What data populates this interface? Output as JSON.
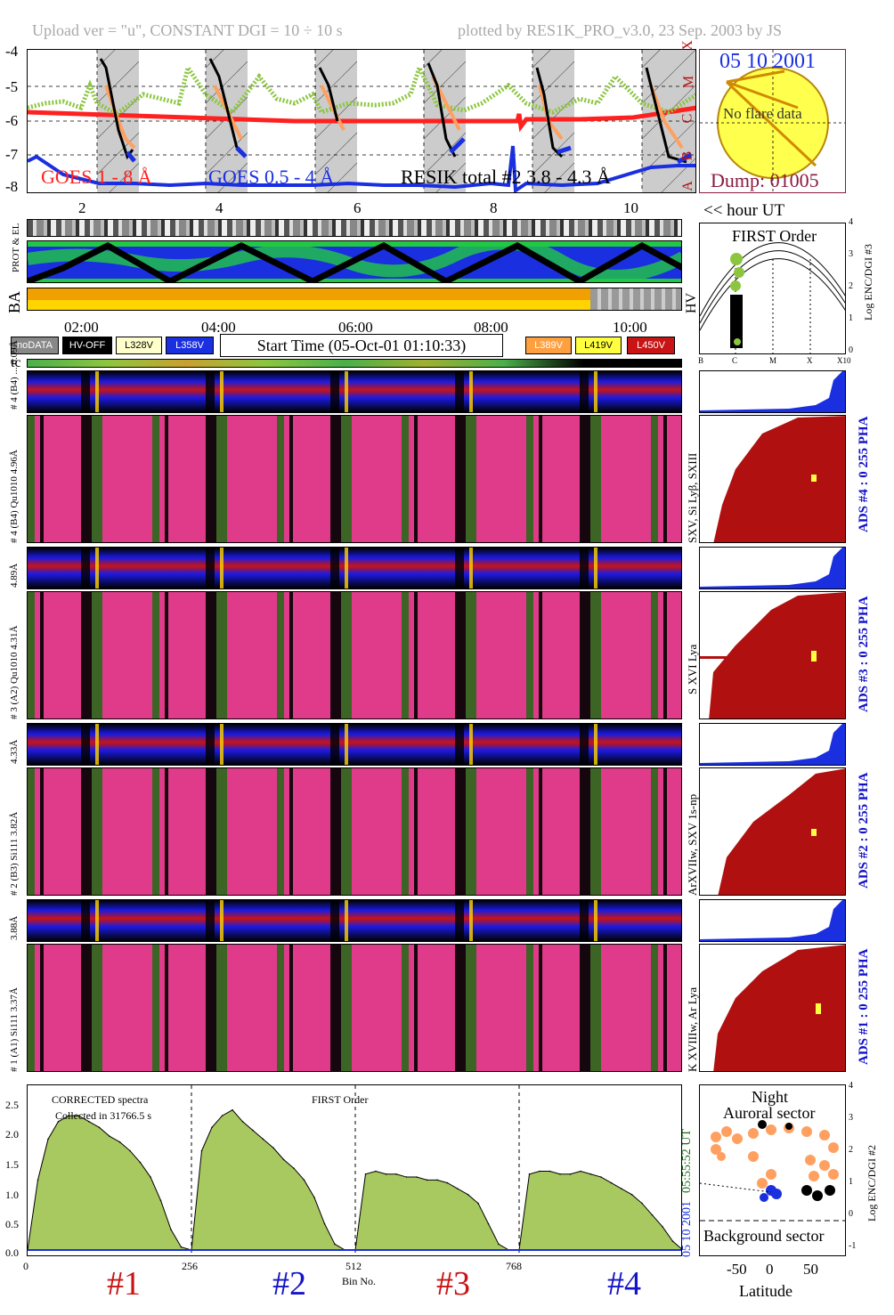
{
  "header": {
    "left": "Upload ver = \"u\", CONSTANT  DGI =  10 ÷  10 s",
    "right": "plotted by RES1K_PRO_v3.0, 23 Sep. 2003 by JS"
  },
  "goes_panel": {
    "y_ticks": [
      "-4",
      "-5",
      "-6",
      "-7",
      "-8"
    ],
    "class_letters": [
      "X",
      "M",
      "C",
      "B",
      "A"
    ],
    "goes1": "GOES 1 - 8 Å",
    "goes2": "GOES 0.5 - 4 Å",
    "resik_total": "RESIK total #2  3.8 - 4.3 Å",
    "hour_ticks": [
      "2",
      "4",
      "6",
      "8",
      "10"
    ],
    "hour_axis_label": "<< hour UT",
    "colors": {
      "goes1": "#ff2020",
      "goes2": "#1a2fe0",
      "resik": "#000000",
      "green": "#8cc63f",
      "orange": "#ffa060"
    }
  },
  "sun_panel": {
    "date": "05 10 2001",
    "no_flare": "No flare data",
    "dump": "Dump: 01005"
  },
  "status_rows": {
    "prot_el": "PROT & EL",
    "ba": "BA",
    "hv": "HV"
  },
  "time_axis": {
    "ticks": [
      "02:00",
      "04:00",
      "06:00",
      "08:00",
      "10:00"
    ]
  },
  "legend": {
    "nodata": "noDATA",
    "hvoff": "HV-OFF",
    "l328": "L328V",
    "l358": "L358V",
    "start_time": "Start Time (05-Oct-01 01:10:33)",
    "l389": "L389V",
    "l419": "L419V",
    "l450": "L450V",
    "tc": "tc"
  },
  "first_order": {
    "title": "FIRST Order",
    "y_label": "Log ENC/DGI #3",
    "y_ticks": [
      "4",
      "3",
      "2",
      "1",
      "0"
    ],
    "x_ticks": [
      "B",
      "C",
      "M",
      "X",
      "X10"
    ]
  },
  "channels": [
    {
      "pha_label": "# 4 (B4) ... 6.09Å",
      "label": "# 4 (B4) Qu1010 4.96Å",
      "lines": "SXV, Si Lyβ, SXIII",
      "ads": "ADS #4 :    0 255  PHA"
    },
    {
      "pha_label": "4.89Å",
      "label": "# 3 (A2) Qu1010 4.31Å",
      "lines": "S XVI Lya",
      "ads": "ADS #3 :    0 255  PHA"
    },
    {
      "pha_label": "4.33Å",
      "label": "# 2 (B3) Si111 3.82Å",
      "lines": "ArXVIIw, SXV 1s-np",
      "ads": "ADS #2 :    0 255  PHA"
    },
    {
      "pha_label": "3.88Å",
      "label": "# 1 (A1) Si111 3.37Å",
      "lines": "K XVIIIw, Ar Lya",
      "ads": "ADS #1 :    0 255  PHA"
    }
  ],
  "spectrum": {
    "title": "CORRECTED spectra",
    "collected": "Collected in 31766.5 s",
    "first_order": "FIRST Order",
    "xlabel": "Bin No.",
    "x_ticks": [
      "0",
      "256",
      "512",
      "768"
    ],
    "y_ticks": [
      "2.5",
      "2.0",
      "1.5",
      "1.0",
      "0.5",
      "0.0"
    ],
    "side_label": "05 10 2001",
    "side_time": "05:55:52 UT",
    "channel_labels": [
      "#1",
      "#2",
      "#3",
      "#4"
    ],
    "channel_colors": [
      "#c81414",
      "#1414c8",
      "#c81414",
      "#1414c8"
    ]
  },
  "latitude_panel": {
    "night": "Night",
    "auroral": "Auroral sector",
    "background": "Background sector",
    "xlabel": "Latitude",
    "x_ticks": [
      "-50",
      "0",
      "50"
    ],
    "y_label": "Log ENC/DGI #2",
    "y_ticks": [
      "4",
      "3",
      "2",
      "1",
      "0",
      "-1"
    ]
  },
  "chart_data": {
    "type": "line",
    "title": "",
    "xlabel": "Bin No.",
    "ylabel": "",
    "ylim": [
      0,
      2.7
    ],
    "x": [
      0,
      16,
      32,
      48,
      64,
      80,
      96,
      112,
      128,
      144,
      160,
      176,
      192,
      208,
      224,
      240,
      256,
      272,
      288,
      304,
      320,
      336,
      352,
      368,
      384,
      400,
      416,
      432,
      448,
      464,
      480,
      496,
      512,
      528,
      544,
      560,
      576,
      592,
      608,
      624,
      640,
      656,
      672,
      688,
      704,
      720,
      736,
      752,
      768,
      784,
      800,
      816,
      832,
      848,
      864,
      880,
      896,
      912,
      928,
      944,
      960,
      976,
      992,
      1008,
      1024
    ],
    "series": [
      {
        "values": [
          0.0,
          1.2,
          1.9,
          2.2,
          2.3,
          2.3,
          2.2,
          2.1,
          1.95,
          1.85,
          1.7,
          1.5,
          1.25,
          0.85,
          0.35,
          0.05,
          0.0,
          1.7,
          2.1,
          2.3,
          2.4,
          2.2,
          2.05,
          1.9,
          1.75,
          1.55,
          1.4,
          1.2,
          0.9,
          0.45,
          0.1,
          0.0,
          0.0,
          1.3,
          1.35,
          1.3,
          1.3,
          1.25,
          1.25,
          1.2,
          1.2,
          1.15,
          1.05,
          0.95,
          0.8,
          0.45,
          0.1,
          0.0,
          0.0,
          1.3,
          1.35,
          1.35,
          1.3,
          1.3,
          1.35,
          1.3,
          1.25,
          1.15,
          1.05,
          0.95,
          0.8,
          0.6,
          0.4,
          0.15,
          0.0
        ]
      }
    ]
  }
}
